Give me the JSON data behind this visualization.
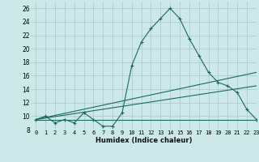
{
  "background_color": "#cce8e8",
  "grid_color": "#aac8c8",
  "line_color": "#1a6b5a",
  "xlabel": "Humidex (Indice chaleur)",
  "xlim": [
    -0.5,
    23
  ],
  "ylim": [
    8,
    27
  ],
  "yticks": [
    8,
    10,
    12,
    14,
    16,
    18,
    20,
    22,
    24,
    26
  ],
  "xticks": [
    0,
    1,
    2,
    3,
    4,
    5,
    6,
    7,
    8,
    9,
    10,
    11,
    12,
    13,
    14,
    15,
    16,
    17,
    18,
    19,
    20,
    21,
    22,
    23
  ],
  "series1_x": [
    0,
    1,
    2,
    3,
    4,
    5,
    6,
    7,
    8,
    9,
    10,
    11,
    12,
    13,
    14,
    15,
    16,
    17,
    18,
    19,
    20,
    21,
    22,
    23
  ],
  "series1_y": [
    9.5,
    10,
    9,
    9.5,
    9,
    10.5,
    9.5,
    8.5,
    8.5,
    10.5,
    17.5,
    21,
    23,
    24.5,
    26,
    24.5,
    21.5,
    19,
    16.5,
    15,
    14.5,
    13.5,
    11,
    9.5
  ],
  "series2_x": [
    0,
    23
  ],
  "series2_y": [
    9.5,
    9.5
  ],
  "series3_x": [
    0,
    23
  ],
  "series3_y": [
    9.5,
    16.5
  ],
  "series4_x": [
    0,
    23
  ],
  "series4_y": [
    9.5,
    14.5
  ],
  "xlabel_fontsize": 6.0,
  "tick_fontsize": 5.0,
  "ytick_fontsize": 5.5
}
